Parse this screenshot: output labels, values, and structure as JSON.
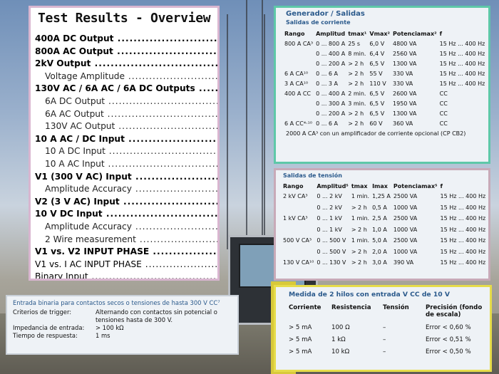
{
  "overview": {
    "title": "Test Results - Overview",
    "rows": [
      {
        "label": "400A DC Output",
        "level": "main"
      },
      {
        "label": "800A AC Output",
        "level": "main"
      },
      {
        "label": "2kV Output",
        "level": "main"
      },
      {
        "label": "Voltage Amplitude",
        "level": "sub"
      },
      {
        "label": "130V AC / 6A AC / 6A DC Outputs",
        "level": "main"
      },
      {
        "label": "6A DC Output",
        "level": "sub"
      },
      {
        "label": "6A AC Output",
        "level": "sub"
      },
      {
        "label": "130V AC Output",
        "level": "sub"
      },
      {
        "label": "10 A AC / DC Input",
        "level": "main"
      },
      {
        "label": "10 A DC Input",
        "level": "sub"
      },
      {
        "label": "10 A AC Input",
        "level": "sub"
      },
      {
        "label": "V1 (300 V AC) Input",
        "level": "main"
      },
      {
        "label": "Amplitude Accuracy",
        "level": "sub"
      },
      {
        "label": "V2 (3 V AC) Input",
        "level": "main"
      },
      {
        "label": "10 V DC Input",
        "level": "main"
      },
      {
        "label": "Amplitude Accuracy",
        "level": "sub"
      },
      {
        "label": "2 Wire measurement",
        "level": "sub"
      },
      {
        "label": "V1 vs. V2 INPUT PHASE",
        "level": "main"
      },
      {
        "label": "V1 vs. I AC INPUT PHASE",
        "level": "plain"
      },
      {
        "label": "Binary Input",
        "level": "plain"
      }
    ]
  },
  "generador": {
    "title": "Generador / Salidas",
    "subtitle": "Salidas de corriente",
    "headers": [
      "Rango",
      "Amplitud",
      "tmax¹",
      "Vmax²",
      "Potenciamax²",
      "f"
    ],
    "rows": [
      [
        "800 A CA³",
        "0 ... 800 A",
        "25 s",
        "6,0 V",
        "4800 VA",
        "15 Hz ... 400 Hz"
      ],
      [
        "",
        "0 ... 400 A",
        "8 min.",
        "6,4 V",
        "2560 VA",
        "15 Hz ... 400 Hz"
      ],
      [
        "",
        "0 ... 200 A",
        "> 2 h",
        "6,5 V",
        "1300 VA",
        "15 Hz ... 400 Hz"
      ],
      [
        "6 A CA¹⁰",
        "0 ... 6 A",
        "> 2 h",
        "55 V",
        "330 VA",
        "15 Hz ... 400 Hz"
      ],
      [
        "3 A CA¹⁰",
        "0 ... 3 A",
        "> 2 h",
        "110 V",
        "330 VA",
        "15 Hz ... 400 Hz"
      ],
      [
        "400 A CC",
        "0 ... 400 A",
        "2 min.",
        "6,5 V",
        "2600 VA",
        "CC"
      ],
      [
        "",
        "0 ... 300 A",
        "3 min.",
        "6,5 V",
        "1950 VA",
        "CC"
      ],
      [
        "",
        "0 ... 200 A",
        "> 2 h",
        "6,5 V",
        "1300 VA",
        "CC"
      ],
      [
        "6 A CC⁴·¹⁰",
        "0 ... 6 A",
        "> 2 h",
        "60 V",
        "360 VA",
        "CC"
      ]
    ],
    "footnote": "2000 A CA³ con un amplificador de corriente opcional (CP CB2)"
  },
  "tension": {
    "subtitle": "Salidas de tensión",
    "headers": [
      "Rango",
      "Amplitud⁵",
      "tmax",
      "Imax",
      "Potenciamax⁵",
      "f"
    ],
    "rows": [
      [
        "2 kV CA³",
        "0 ... 2 kV",
        "1 min.",
        "1,25 A",
        "2500 VA",
        "15 Hz ... 400 Hz"
      ],
      [
        "",
        "0 ... 2 kV",
        "> 2 h",
        "0,5 A",
        "1000 VA",
        "15 Hz ... 400 Hz"
      ],
      [
        "1 kV CA³",
        "0 ... 1 kV",
        "1 min.",
        "2,5 A",
        "2500 VA",
        "15 Hz ... 400 Hz"
      ],
      [
        "",
        "0 ... 1 kV",
        "> 2 h",
        "1,0 A",
        "1000 VA",
        "15 Hz ... 400 Hz"
      ],
      [
        "500 V CA³",
        "0 ... 500 V",
        "1 min.",
        "5,0 A",
        "2500 VA",
        "15 Hz ... 400 Hz"
      ],
      [
        "",
        "0 ... 500 V",
        "> 2 h",
        "2,0 A",
        "1000 VA",
        "15 Hz ... 400 Hz"
      ],
      [
        "130 V CA¹⁰",
        "0 ... 130 V",
        "> 2 h",
        "3,0 A",
        "390 VA",
        "15 Hz ... 400 Hz"
      ]
    ]
  },
  "binaria": {
    "title": "Entrada binaria para contactos secos o tensiones de hasta 300 V CC⁷",
    "rows": [
      {
        "label": "Criterios de trigger:",
        "value": "Alternando con contactos sin potencial o tensiones hasta de 300 V."
      },
      {
        "label": "Impedancia de entrada:",
        "value": "> 100 kΩ"
      },
      {
        "label": "Tiempo de respuesta:",
        "value": "1 ms"
      }
    ]
  },
  "medida": {
    "title": "Medida de 2 hilos con entrada V CC de 10 V",
    "headers": [
      "Corriente",
      "Resistencia",
      "Tensión",
      "Precisión (fondo de escala)"
    ],
    "rows": [
      [
        "> 5 mA",
        "100 Ω",
        "–",
        "Error < 0,60 %"
      ],
      [
        "> 5 mA",
        "1 kΩ",
        "–",
        "Error < 0,51 %"
      ],
      [
        "> 5 mA",
        "10 kΩ",
        "–",
        "Error < 0,50 %"
      ]
    ]
  }
}
